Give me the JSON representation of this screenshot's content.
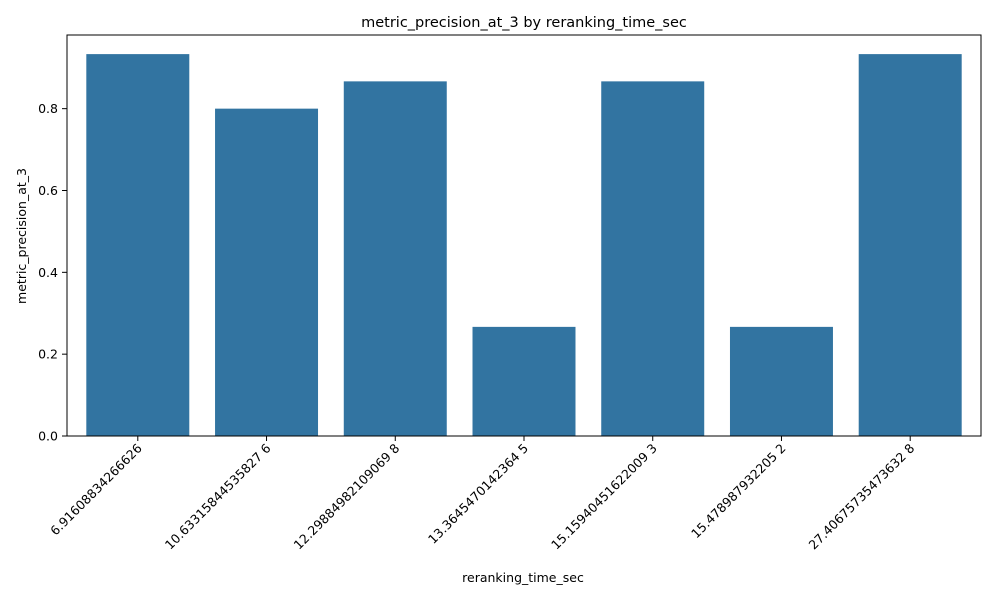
{
  "chart_data": {
    "type": "bar",
    "title": "metric_precision_at_3 by reranking_time_sec",
    "xlabel": "reranking_time_sec",
    "ylabel": "metric_precision_at_3",
    "categories": [
      "6.91608834266626",
      "10.63315844535827 6",
      "12.29884982109069 8",
      "13.3645470142364 5",
      "15.15940451622009 3",
      "15.478987932205 2",
      "27.40675735473632 8"
    ],
    "values": [
      0.9333,
      0.8,
      0.8667,
      0.2667,
      0.8667,
      0.2667,
      0.9333
    ],
    "ylim": [
      0,
      0.98
    ],
    "yticks": [
      0.0,
      0.2,
      0.4,
      0.6,
      0.8
    ],
    "ytick_labels": [
      "0.0",
      "0.2",
      "0.4",
      "0.6",
      "0.8"
    ],
    "bar_color": "#3274a1",
    "grid": false,
    "legend": "none"
  }
}
